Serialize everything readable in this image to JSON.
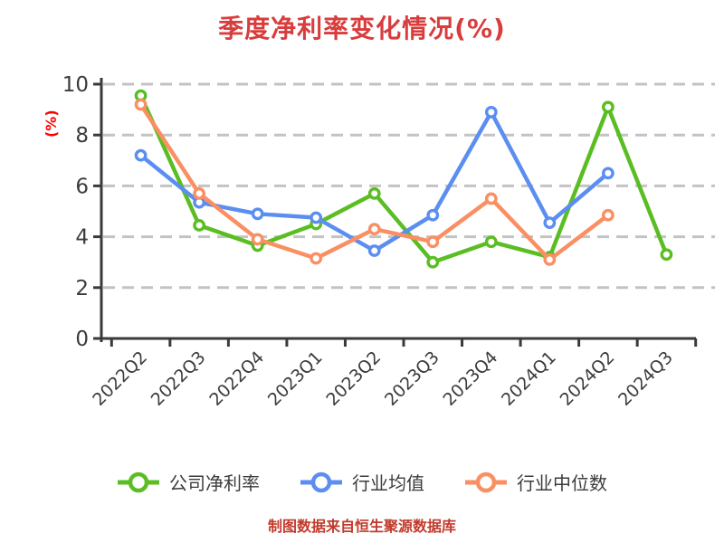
{
  "title": "季度净利率变化情况(%)",
  "footer": "制图数据来自恒生聚源数据库",
  "colors": {
    "title": "#d93c3c",
    "footer": "#c23a2c",
    "y_axis_unit_label": "#ff0000",
    "text": "#3c3c3c",
    "grid": "#c3c3c3",
    "axis": "#3a3a3a",
    "marker_fill": "#ffffff"
  },
  "chart_data": {
    "type": "line",
    "title": "季度净利率变化情况(%)",
    "xlabel": "",
    "ylabel": "(%)",
    "categories": [
      "2022Q2",
      "2022Q3",
      "2022Q4",
      "2023Q1",
      "2023Q2",
      "2023Q3",
      "2023Q4",
      "2024Q1",
      "2024Q2",
      "2024Q3"
    ],
    "series": [
      {
        "name": "公司净利率",
        "color": "#5abe23",
        "values": [
          9.55,
          4.45,
          3.65,
          4.5,
          5.7,
          3.0,
          3.8,
          3.2,
          9.1,
          3.3
        ]
      },
      {
        "name": "行业均值",
        "color": "#5b8ef0",
        "values": [
          7.2,
          5.35,
          4.9,
          4.75,
          3.45,
          4.85,
          8.9,
          4.55,
          6.5,
          null
        ]
      },
      {
        "name": "行业中位数",
        "color": "#f98f62",
        "values": [
          9.2,
          5.7,
          3.9,
          3.15,
          4.3,
          3.8,
          5.5,
          3.1,
          4.85,
          null
        ]
      }
    ],
    "ylim": [
      0,
      10
    ],
    "yticks": [
      0,
      2,
      4,
      6,
      8,
      10
    ],
    "grid": "dashed horizontal",
    "legend_position": "bottom",
    "x_tick_style": "boundary ticks, labels rotated 45deg"
  }
}
